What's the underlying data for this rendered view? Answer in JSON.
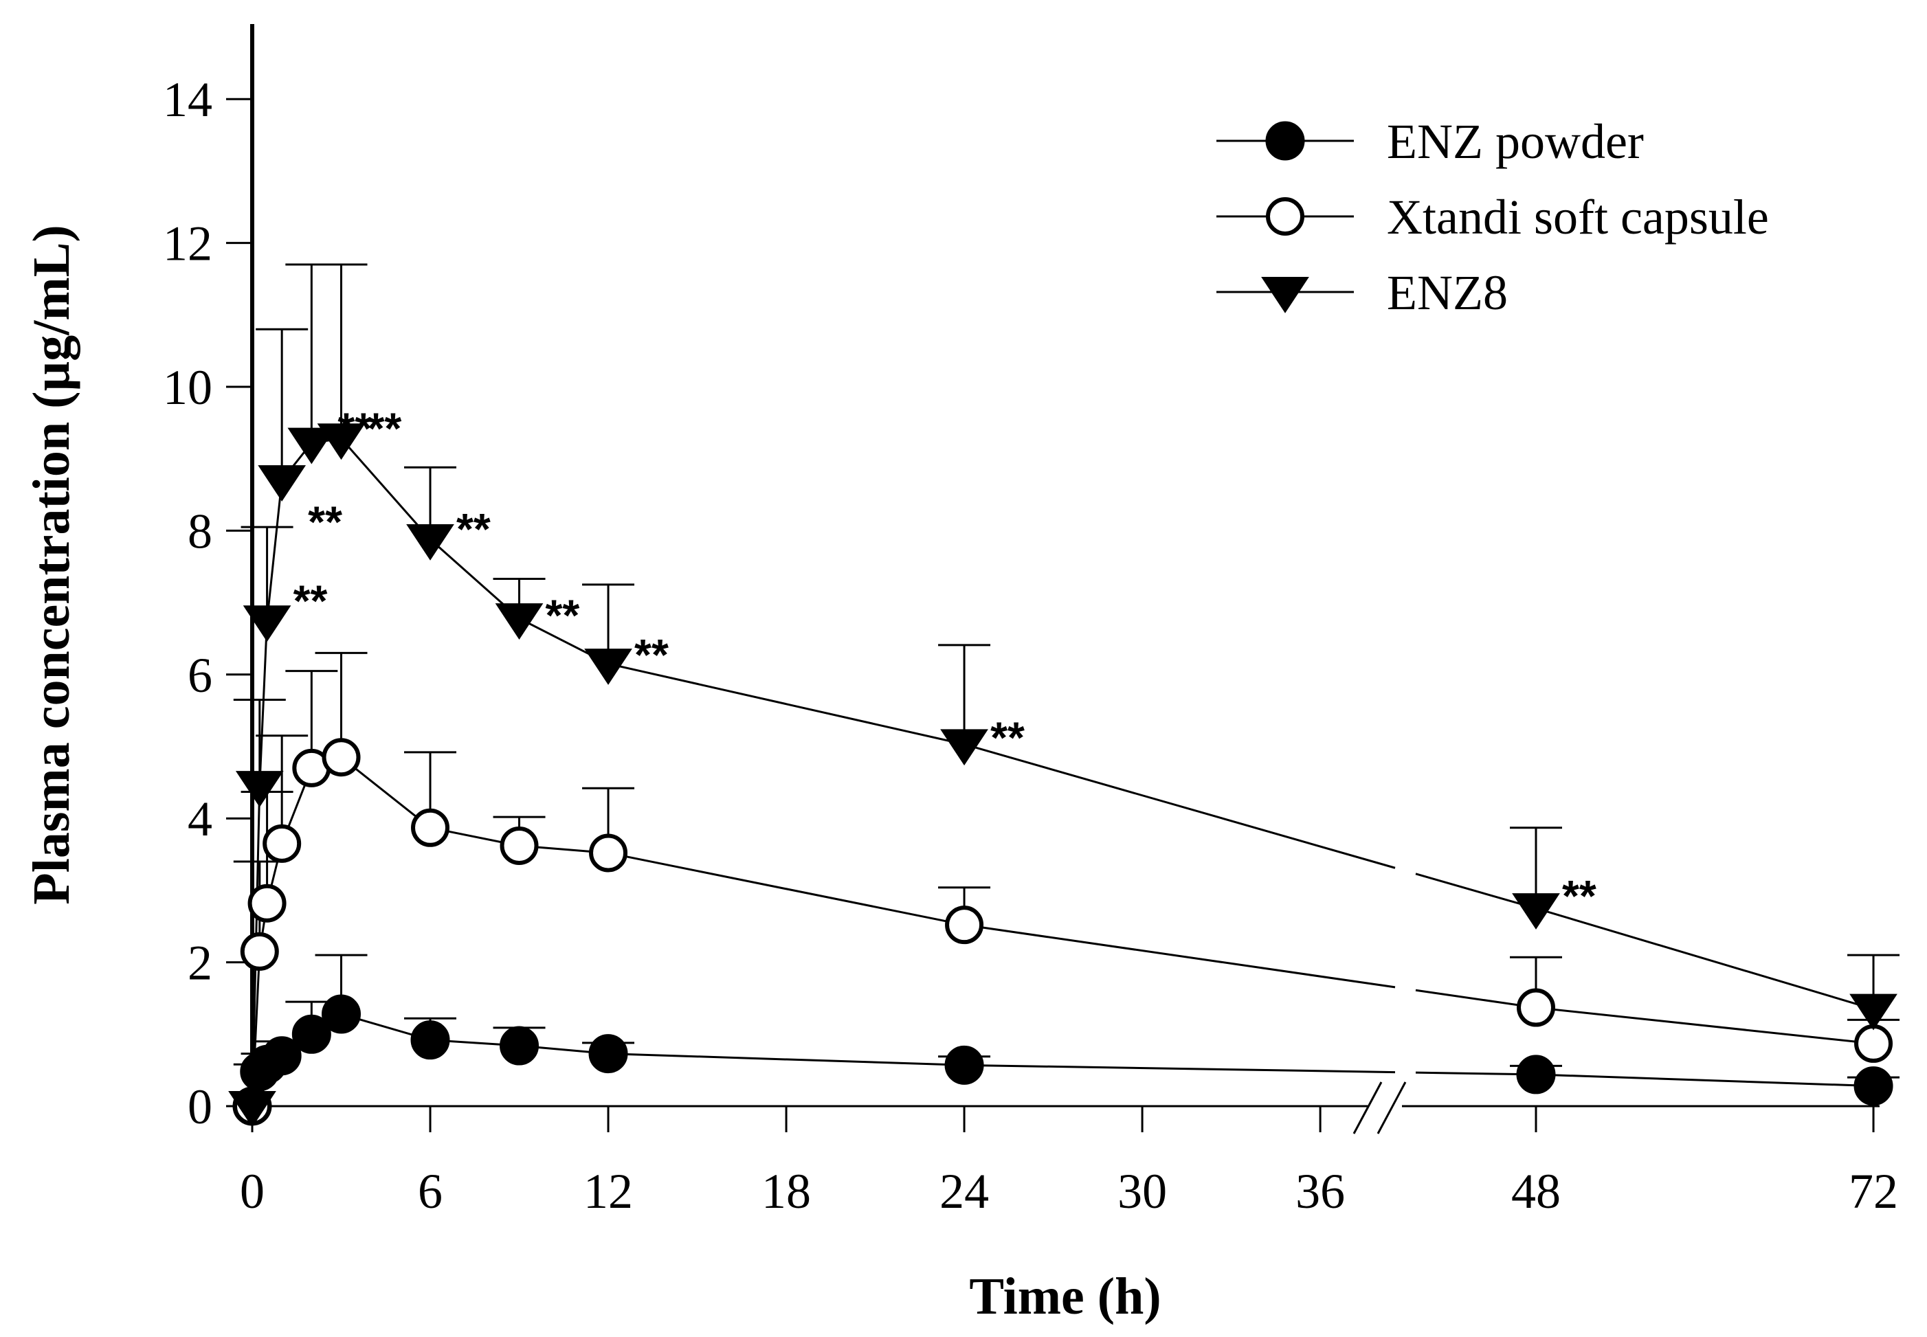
{
  "chart_data": {
    "type": "line",
    "title": "",
    "xlabel": "Time (h)",
    "ylabel": "Plasma concentration (µg/mL)",
    "xlim": [
      0,
      72
    ],
    "ylim": [
      0,
      15
    ],
    "x_ticks": [
      {
        "value": 0,
        "label": "0"
      },
      {
        "value": 6,
        "label": "6"
      },
      {
        "value": 12,
        "label": "12"
      },
      {
        "value": 18,
        "label": "18"
      },
      {
        "value": 24,
        "label": "24"
      },
      {
        "value": 30,
        "label": "30"
      },
      {
        "value": 36,
        "label": "36"
      },
      {
        "value": 48,
        "label": "48"
      },
      {
        "value": 72,
        "label": "72"
      }
    ],
    "y_ticks": [
      0,
      2,
      4,
      6,
      8,
      10,
      12,
      14
    ],
    "axis_break": "between 36 and 48 h",
    "x": [
      0,
      0.25,
      0.5,
      1,
      2,
      3,
      6,
      9,
      12,
      24,
      48,
      72
    ],
    "series": [
      {
        "name": "ENZ powder",
        "marker": "filled-circle",
        "values": [
          0,
          0.48,
          0.58,
          0.7,
          1.0,
          1.28,
          0.92,
          0.84,
          0.73,
          0.57,
          0.44,
          0.28
        ],
        "error": [
          0,
          0.1,
          0.15,
          0.2,
          0.45,
          0.82,
          0.3,
          0.25,
          0.15,
          0.12,
          0.12,
          0.12
        ]
      },
      {
        "name": "Xtandi soft capsule",
        "marker": "open-circle",
        "values": [
          0,
          2.15,
          2.82,
          3.65,
          4.7,
          4.85,
          3.87,
          3.62,
          3.52,
          2.52,
          1.37,
          0.87
        ],
        "error": [
          0,
          1.25,
          1.55,
          1.5,
          1.35,
          1.45,
          1.05,
          0.4,
          0.9,
          0.52,
          0.7,
          0.33
        ]
      },
      {
        "name": "ENZ8",
        "marker": "filled-triangle-down",
        "values": [
          0,
          4.45,
          6.75,
          8.7,
          9.22,
          9.28,
          7.88,
          6.78,
          6.15,
          5.03,
          2.75,
          1.35
        ],
        "error": [
          0,
          1.2,
          1.3,
          2.1,
          2.48,
          2.42,
          1.0,
          0.55,
          1.1,
          1.38,
          1.12,
          0.75
        ]
      }
    ],
    "annotations": [
      {
        "text": "**",
        "x": 0.5,
        "y": 7.1
      },
      {
        "text": "**",
        "x": 1,
        "y": 8.2
      },
      {
        "text": "**",
        "x": 2,
        "y": 9.5
      },
      {
        "text": "**",
        "x": 3,
        "y": 9.5
      },
      {
        "text": "**",
        "x": 6,
        "y": 8.1
      },
      {
        "text": "**",
        "x": 9,
        "y": 6.9
      },
      {
        "text": "**",
        "x": 12,
        "y": 6.35
      },
      {
        "text": "**",
        "x": 24,
        "y": 5.2
      },
      {
        "text": "**",
        "x": 48,
        "y": 3.0
      }
    ],
    "legend_position": "top-right"
  }
}
